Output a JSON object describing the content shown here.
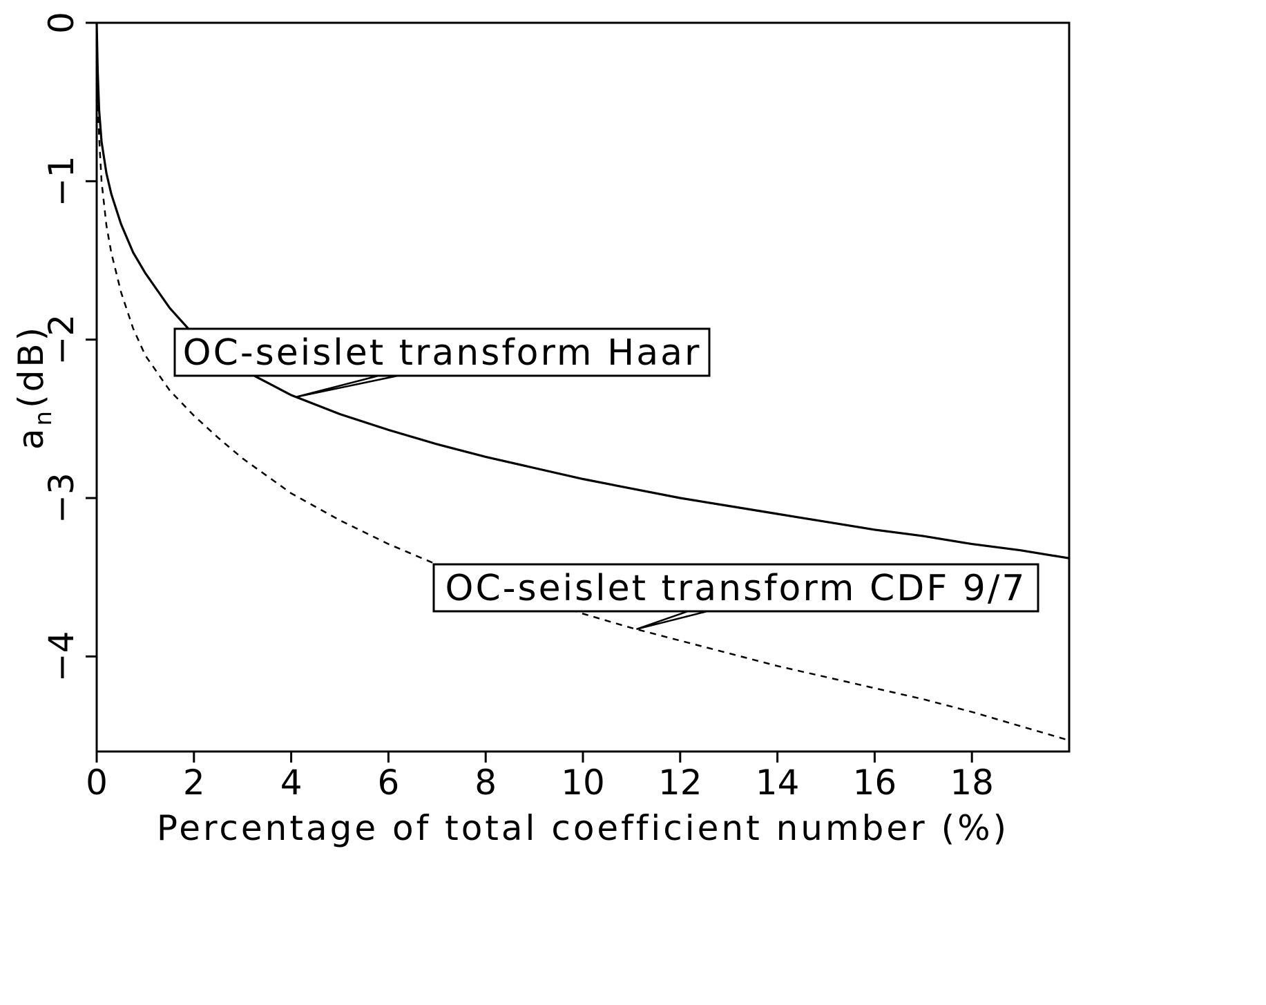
{
  "chart_data": {
    "type": "line",
    "title": "",
    "xlabel": "Percentage of total coefficient number (%)",
    "ylabel": {
      "base": "a",
      "subscript": "n",
      "unit": "(dB)"
    },
    "xlim": [
      0,
      20
    ],
    "ylim": [
      -4.6,
      0
    ],
    "xticks": [
      0,
      2,
      4,
      6,
      8,
      10,
      12,
      14,
      16,
      18
    ],
    "yticks": [
      0,
      -1,
      -2,
      -3,
      -4
    ],
    "xtick_labels": [
      "0",
      "2",
      "4",
      "6",
      "8",
      "10",
      "12",
      "14",
      "16",
      "18"
    ],
    "ytick_labels": [
      "0",
      "−1",
      "−2",
      "−3",
      "−4"
    ],
    "grid": false,
    "series": [
      {
        "name": "OC-seislet transform Haar",
        "style": "solid",
        "x": [
          0,
          0.02,
          0.05,
          0.1,
          0.2,
          0.3,
          0.5,
          0.75,
          1,
          1.5,
          2,
          2.5,
          3,
          3.5,
          4,
          5,
          6,
          7,
          8,
          9,
          10,
          11,
          12,
          13,
          14,
          15,
          16,
          17,
          18,
          19,
          20
        ],
        "y": [
          0,
          -0.3,
          -0.55,
          -0.75,
          -0.95,
          -1.08,
          -1.27,
          -1.45,
          -1.58,
          -1.8,
          -1.97,
          -2.09,
          -2.19,
          -2.27,
          -2.35,
          -2.47,
          -2.57,
          -2.66,
          -2.74,
          -2.81,
          -2.88,
          -2.94,
          -3.0,
          -3.05,
          -3.1,
          -3.15,
          -3.2,
          -3.24,
          -3.29,
          -3.33,
          -3.38
        ]
      },
      {
        "name": "OC-seislet transform CDF 9/7",
        "style": "dashed",
        "x": [
          0,
          0.02,
          0.05,
          0.1,
          0.2,
          0.3,
          0.5,
          0.75,
          1,
          1.5,
          2,
          2.5,
          3,
          3.5,
          4,
          5,
          6,
          7,
          8,
          9,
          10,
          11,
          12,
          13,
          14,
          15,
          16,
          17,
          18,
          19,
          20
        ],
        "y": [
          0,
          -0.45,
          -0.72,
          -1.0,
          -1.28,
          -1.45,
          -1.7,
          -1.93,
          -2.1,
          -2.32,
          -2.48,
          -2.62,
          -2.75,
          -2.86,
          -2.97,
          -3.14,
          -3.29,
          -3.42,
          -3.53,
          -3.63,
          -3.73,
          -3.82,
          -3.9,
          -3.98,
          -4.06,
          -4.13,
          -4.2,
          -4.27,
          -4.35,
          -4.44,
          -4.53
        ]
      }
    ],
    "annotations": [
      {
        "text": "OC-seislet transform Haar",
        "target_series": "OC-seislet transform Haar",
        "target_x": 4.1
      },
      {
        "text": "OC-seislet transform CDF 9/7",
        "target_series": "OC-seislet transform CDF 9/7",
        "target_x": 11.1
      }
    ]
  }
}
